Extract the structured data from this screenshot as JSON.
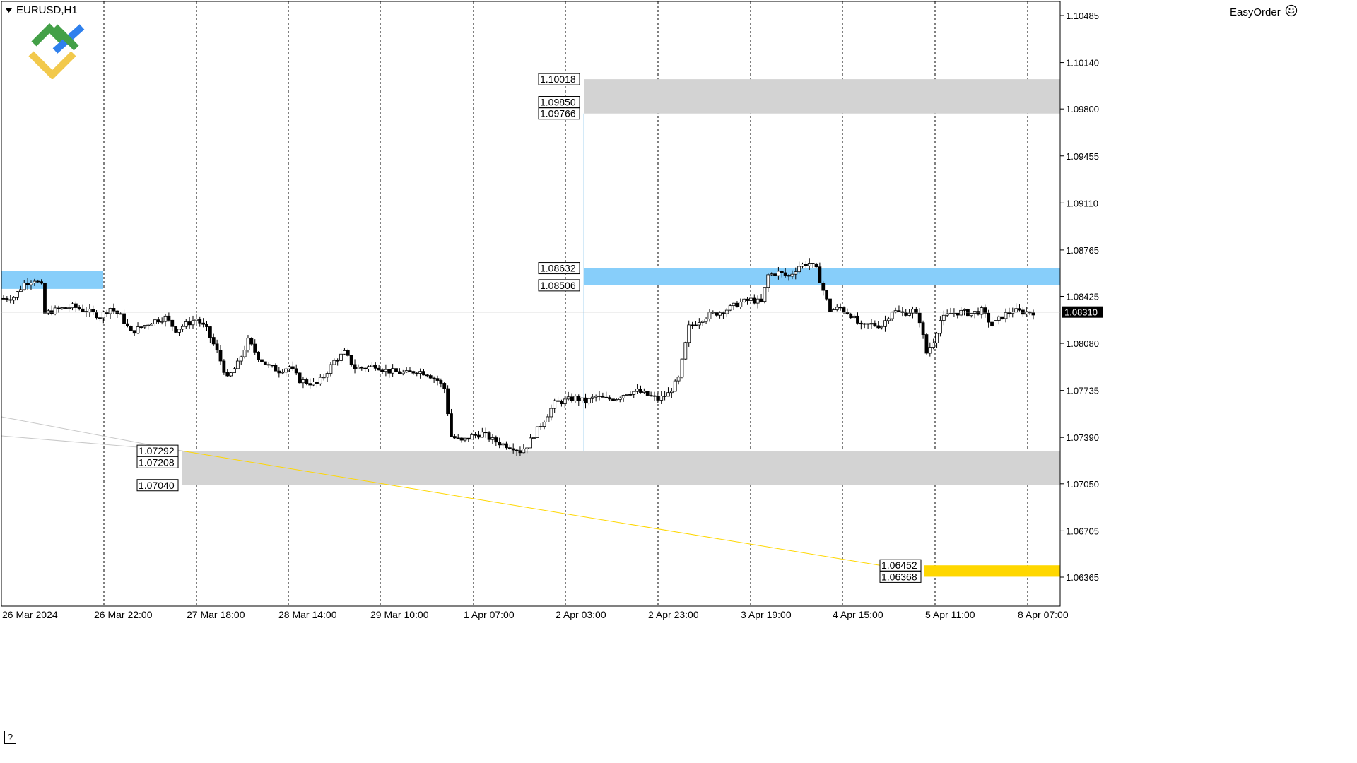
{
  "header": {
    "symbol": "EURUSD,H1",
    "dropdown_icon": "triangle-down-icon"
  },
  "expert": {
    "name": "EasyOrder",
    "icon": "smiley-icon"
  },
  "help_label": "?",
  "logo_icon": "broker-logo-icon",
  "colors": {
    "resistance_zone": "#d3d3d3",
    "support_zone": "#d3d3d3",
    "pivot_zone": "#87cefa",
    "target_zone": "#ffd700",
    "bull_candle": "#ffffff",
    "bear_candle": "#000000",
    "current_price_bg": "#000000",
    "trendline": "#ffd700",
    "gridline": "#000000"
  },
  "chart_data": {
    "type": "candlestick",
    "symbol": "EURUSD",
    "timeframe": "H1",
    "ylim": [
      1.0625,
      1.1055
    ],
    "y_ticks": [
      "1.10485",
      "1.10140",
      "1.09800",
      "1.09455",
      "1.09110",
      "1.08765",
      "1.08425",
      "1.08080",
      "1.07735",
      "1.07390",
      "1.07050",
      "1.06705",
      "1.06365"
    ],
    "x_ticks": [
      "26 Mar 2024",
      "26 Mar 22:00",
      "27 Mar 18:00",
      "28 Mar 14:00",
      "29 Mar 10:00",
      "1 Apr 07:00",
      "2 Apr 03:00",
      "2 Apr 23:00",
      "3 Apr 19:00",
      "4 Apr 15:00",
      "5 Apr 11:00",
      "8 Apr 07:00"
    ],
    "current_price": "1.08310",
    "grid": "vertical dashed",
    "zones": [
      {
        "name": "upper-resistance",
        "top": 1.10018,
        "bottom": 1.09766,
        "labels": [
          "1.10018",
          "1.09850",
          "1.09766"
        ],
        "color": "#d3d3d3"
      },
      {
        "name": "pivot-zone",
        "top": 1.08632,
        "bottom": 1.08506,
        "labels": [
          "1.08632",
          "1.08506"
        ],
        "color": "#87cefa"
      },
      {
        "name": "lower-support",
        "top": 1.07292,
        "bottom": 1.0704,
        "labels": [
          "1.07292",
          "1.07208",
          "1.07040"
        ],
        "color": "#d3d3d3"
      },
      {
        "name": "target-zone",
        "top": 1.06452,
        "bottom": 1.06368,
        "labels": [
          "1.06452",
          "1.06368"
        ],
        "color": "#ffd700"
      }
    ],
    "early_zone": {
      "top": 1.0861,
      "bottom": 1.0848
    },
    "trendline": {
      "from": 1.07292,
      "to": 1.06452
    },
    "close_path": [
      [
        0,
        1.0841
      ],
      [
        3,
        1.0842
      ],
      [
        6,
        1.0852
      ],
      [
        9,
        1.0855
      ],
      [
        11,
        1.085
      ],
      [
        12,
        1.083
      ],
      [
        16,
        1.0833
      ],
      [
        20,
        1.0835
      ],
      [
        24,
        1.0832
      ],
      [
        28,
        1.0828
      ],
      [
        31,
        1.0834
      ],
      [
        34,
        1.0828
      ],
      [
        37,
        1.0816
      ],
      [
        40,
        1.082
      ],
      [
        43,
        1.0824
      ],
      [
        47,
        1.0827
      ],
      [
        50,
        1.0818
      ],
      [
        53,
        1.0822
      ],
      [
        56,
        1.0826
      ],
      [
        59,
        1.0818
      ],
      [
        62,
        1.0802
      ],
      [
        65,
        1.0782
      ],
      [
        68,
        1.0793
      ],
      [
        71,
        1.081
      ],
      [
        74,
        1.0798
      ],
      [
        77,
        1.0791
      ],
      [
        80,
        1.0788
      ],
      [
        83,
        1.0791
      ],
      [
        86,
        1.0781
      ],
      [
        89,
        1.0779
      ],
      [
        91,
        1.0778
      ],
      [
        93,
        1.0784
      ],
      [
        96,
        1.0795
      ],
      [
        99,
        1.0801
      ],
      [
        102,
        1.079
      ],
      [
        105,
        1.079
      ],
      [
        108,
        1.0792
      ],
      [
        111,
        1.0788
      ],
      [
        114,
        1.0787
      ],
      [
        117,
        1.0786
      ],
      [
        120,
        1.0788
      ],
      [
        123,
        1.0786
      ],
      [
        126,
        1.0781
      ],
      [
        128,
        1.0775
      ],
      [
        130,
        1.074
      ],
      [
        133,
        1.0736
      ],
      [
        136,
        1.074
      ],
      [
        139,
        1.0742
      ],
      [
        142,
        1.0737
      ],
      [
        145,
        1.0734
      ],
      [
        148,
        1.0732
      ],
      [
        150,
        1.0729
      ],
      [
        152,
        1.0733
      ],
      [
        154,
        1.0741
      ],
      [
        157,
        1.0752
      ],
      [
        160,
        1.0764
      ],
      [
        163,
        1.0766
      ],
      [
        166,
        1.0768
      ],
      [
        169,
        1.0765
      ],
      [
        172,
        1.0769
      ],
      [
        175,
        1.0767
      ],
      [
        178,
        1.0768
      ],
      [
        181,
        1.0772
      ],
      [
        184,
        1.0773
      ],
      [
        187,
        1.077
      ],
      [
        190,
        1.0767
      ],
      [
        193,
        1.0771
      ],
      [
        196,
        1.0782
      ],
      [
        199,
        1.082
      ],
      [
        202,
        1.0825
      ],
      [
        205,
        1.0829
      ],
      [
        208,
        1.0831
      ],
      [
        211,
        1.0834
      ],
      [
        214,
        1.0838
      ],
      [
        217,
        1.084
      ],
      [
        220,
        1.0838
      ],
      [
        222,
        1.0858
      ],
      [
        225,
        1.086
      ],
      [
        228,
        1.0857
      ],
      [
        231,
        1.0865
      ],
      [
        234,
        1.0867
      ],
      [
        236,
        1.0862
      ],
      [
        238,
        1.0847
      ],
      [
        240,
        1.0832
      ],
      [
        243,
        1.0834
      ],
      [
        246,
        1.0829
      ],
      [
        249,
        1.082
      ],
      [
        252,
        1.0822
      ],
      [
        255,
        1.0821
      ],
      [
        258,
        1.0832
      ],
      [
        261,
        1.083
      ],
      [
        264,
        1.0832
      ],
      [
        266,
        1.0825
      ],
      [
        268,
        1.0801
      ],
      [
        270,
        1.081
      ],
      [
        272,
        1.0825
      ],
      [
        275,
        1.083
      ],
      [
        278,
        1.0831
      ],
      [
        281,
        1.083
      ],
      [
        284,
        1.0832
      ],
      [
        287,
        1.0821
      ],
      [
        290,
        1.0828
      ],
      [
        293,
        1.0832
      ],
      [
        296,
        1.0831
      ],
      [
        299,
        1.0831
      ]
    ]
  }
}
